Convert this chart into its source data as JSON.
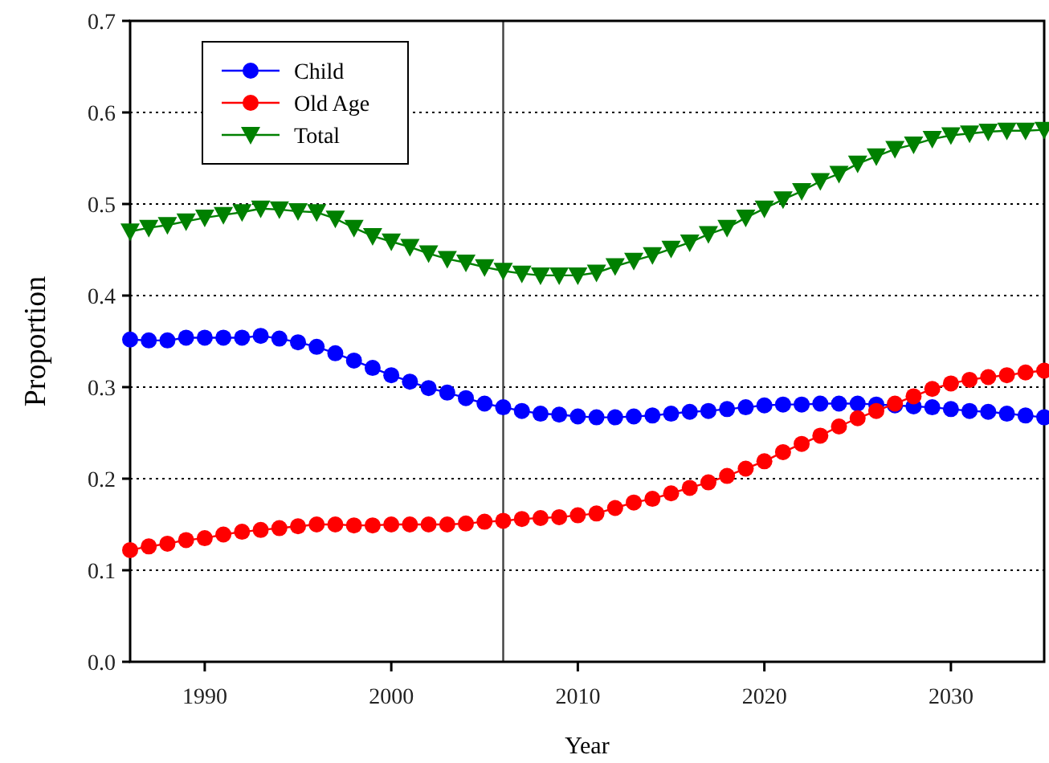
{
  "chart_data": {
    "type": "line",
    "xlabel": "Year",
    "ylabel": "Proportion",
    "x": [
      1986,
      1987,
      1988,
      1989,
      1990,
      1991,
      1992,
      1993,
      1994,
      1995,
      1996,
      1997,
      1998,
      1999,
      2000,
      2001,
      2002,
      2003,
      2004,
      2005,
      2006,
      2007,
      2008,
      2009,
      2010,
      2011,
      2012,
      2013,
      2014,
      2015,
      2016,
      2017,
      2018,
      2019,
      2020,
      2021,
      2022,
      2023,
      2024,
      2025,
      2026,
      2027,
      2028,
      2029,
      2030,
      2031,
      2032,
      2033,
      2034,
      2035
    ],
    "series": [
      {
        "name": "Child",
        "color": "#0000ff",
        "marker": "circle",
        "values": [
          0.352,
          0.351,
          0.351,
          0.354,
          0.354,
          0.354,
          0.354,
          0.356,
          0.353,
          0.349,
          0.344,
          0.337,
          0.329,
          0.321,
          0.313,
          0.306,
          0.299,
          0.294,
          0.288,
          0.282,
          0.278,
          0.274,
          0.271,
          0.27,
          0.268,
          0.267,
          0.267,
          0.268,
          0.269,
          0.271,
          0.273,
          0.274,
          0.276,
          0.278,
          0.28,
          0.281,
          0.281,
          0.282,
          0.282,
          0.282,
          0.281,
          0.28,
          0.279,
          0.278,
          0.276,
          0.274,
          0.273,
          0.271,
          0.269,
          0.267
        ]
      },
      {
        "name": "Old Age",
        "color": "#ff0000",
        "marker": "circle",
        "values": [
          0.122,
          0.126,
          0.129,
          0.133,
          0.135,
          0.139,
          0.142,
          0.144,
          0.146,
          0.148,
          0.15,
          0.15,
          0.149,
          0.149,
          0.15,
          0.15,
          0.15,
          0.15,
          0.151,
          0.153,
          0.154,
          0.156,
          0.157,
          0.158,
          0.16,
          0.162,
          0.168,
          0.174,
          0.178,
          0.184,
          0.19,
          0.196,
          0.203,
          0.211,
          0.219,
          0.229,
          0.238,
          0.247,
          0.257,
          0.266,
          0.274,
          0.282,
          0.29,
          0.298,
          0.304,
          0.308,
          0.311,
          0.313,
          0.316,
          0.318
        ]
      },
      {
        "name": "Total",
        "color": "#008000",
        "marker": "triangle",
        "values": [
          0.47,
          0.474,
          0.477,
          0.481,
          0.485,
          0.488,
          0.491,
          0.495,
          0.494,
          0.492,
          0.491,
          0.484,
          0.474,
          0.465,
          0.459,
          0.453,
          0.446,
          0.44,
          0.436,
          0.431,
          0.427,
          0.424,
          0.422,
          0.422,
          0.422,
          0.425,
          0.432,
          0.438,
          0.444,
          0.451,
          0.458,
          0.467,
          0.474,
          0.485,
          0.495,
          0.505,
          0.514,
          0.525,
          0.533,
          0.544,
          0.552,
          0.56,
          0.565,
          0.571,
          0.575,
          0.577,
          0.579,
          0.58,
          0.58,
          0.581
        ]
      }
    ],
    "xlim": [
      1986,
      2035
    ],
    "xticks": [
      1990,
      2000,
      2010,
      2020,
      2030
    ],
    "ylim": [
      0,
      0.7
    ],
    "yticks": [
      {
        "value": 0,
        "label": "0.0"
      },
      {
        "value": 0.1,
        "label": "0.1"
      },
      {
        "value": 0.2,
        "label": "0.2"
      },
      {
        "value": 0.3,
        "label": "0.3"
      },
      {
        "value": 0.4,
        "label": "0.4"
      },
      {
        "value": 0.5,
        "label": "0.5"
      },
      {
        "value": 0.6,
        "label": "0.6"
      },
      {
        "value": 0.7,
        "label": "0.7"
      }
    ],
    "ref_lines": [
      {
        "axis": "x",
        "value": 2006,
        "color": "#404040"
      }
    ],
    "grid": "y",
    "legend": "top left"
  }
}
